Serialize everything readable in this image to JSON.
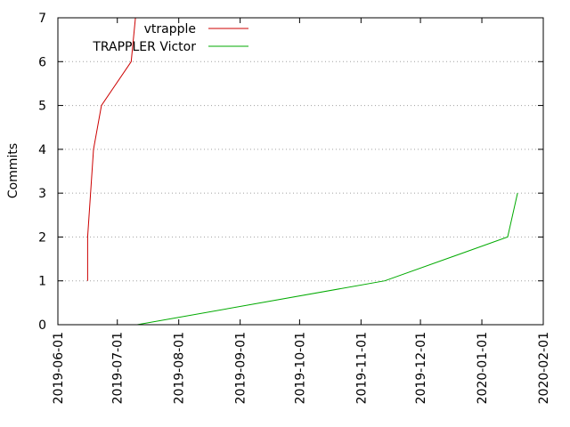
{
  "chart_data": {
    "type": "line",
    "title": "",
    "xlabel": "",
    "ylabel": "Commits",
    "ylim": [
      0,
      7
    ],
    "yticks": [
      "0",
      "1",
      "2",
      "3",
      "4",
      "5",
      "6",
      "7"
    ],
    "xlim": [
      "2019-06-01",
      "2020-02-01"
    ],
    "xticks": [
      "2019-06-01",
      "2019-07-01",
      "2019-08-01",
      "2019-09-01",
      "2019-10-01",
      "2019-11-01",
      "2019-12-01",
      "2020-01-01",
      "2020-02-01"
    ],
    "grid": "horizontal dotted",
    "legend_position": "top-left",
    "series": [
      {
        "name": "vtrapple",
        "color": "#cc0000",
        "points": [
          {
            "x": "2019-06-16",
            "y": 1
          },
          {
            "x": "2019-06-16",
            "y": 2
          },
          {
            "x": "2019-06-19",
            "y": 4
          },
          {
            "x": "2019-06-23",
            "y": 5
          },
          {
            "x": "2019-07-08",
            "y": 6
          },
          {
            "x": "2019-07-11",
            "y": 7.4
          }
        ]
      },
      {
        "name": "TRAPPLER Victor",
        "color": "#00aa00",
        "points": [
          {
            "x": "2019-07-11",
            "y": 0
          },
          {
            "x": "2019-11-13",
            "y": 1
          },
          {
            "x": "2020-01-14",
            "y": 2
          },
          {
            "x": "2020-01-19",
            "y": 3
          }
        ]
      }
    ]
  }
}
